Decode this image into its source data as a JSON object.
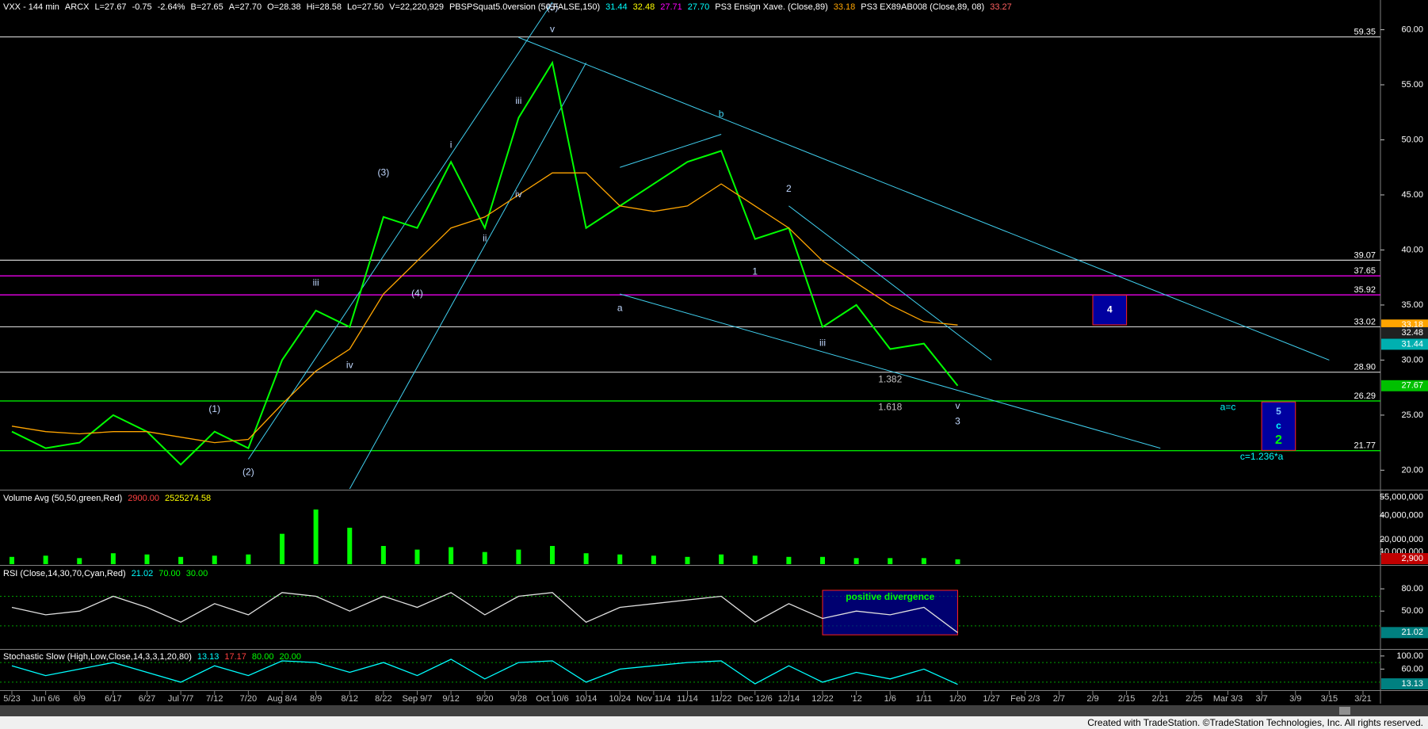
{
  "chart_data": [
    {
      "type": "line",
      "header": [
        {
          "text": "VXX - 144 min",
          "color": "#ffffff"
        },
        {
          "text": "ARCX",
          "color": "#ffffff"
        },
        {
          "text": "L=27.67",
          "color": "#ffffff"
        },
        {
          "text": "-0.75",
          "color": "#ffffff"
        },
        {
          "text": "-2.64%",
          "color": "#ffffff"
        },
        {
          "text": "B=27.65",
          "color": "#ffffff"
        },
        {
          "text": "A=27.70",
          "color": "#ffffff"
        },
        {
          "text": "O=28.38",
          "color": "#ffffff"
        },
        {
          "text": "Hi=28.58",
          "color": "#ffffff"
        },
        {
          "text": "Lo=27.50",
          "color": "#ffffff"
        },
        {
          "text": "V=22,220,929",
          "color": "#ffffff"
        },
        {
          "text": "PBSPSquat5.0version (50,FALSE,150)",
          "color": "#ffffff"
        },
        {
          "text": "31.44",
          "color": "#00ffff"
        },
        {
          "text": "32.48",
          "color": "#ffff00"
        },
        {
          "text": "27.71",
          "color": "#ff00ff"
        },
        {
          "text": "27.70",
          "color": "#00ffff"
        },
        {
          "text": "PS3 Ensign Xave. (Close,89)",
          "color": "#ffffff"
        },
        {
          "text": "33.18",
          "color": "#ffa500"
        },
        {
          "text": "PS3 EX89AB008 (Close,89, 08)",
          "color": "#ffffff"
        },
        {
          "text": "33.27",
          "color": "#ff6060"
        }
      ],
      "categories": [
        "5/23",
        "Jun 6/6",
        "6/9",
        "6/17",
        "6/27",
        "Jul 7/7",
        "7/12",
        "7/20",
        "Aug 8/4",
        "8/9",
        "8/12",
        "8/22",
        "Sep 9/7",
        "9/12",
        "9/20",
        "9/28",
        "Oct 10/6",
        "10/14",
        "10/24",
        "Nov 11/4",
        "11/14",
        "11/22",
        "Dec 12/6",
        "12/14",
        "12/22",
        "'12",
        "1/6",
        "1/11",
        "1/20",
        "1/27",
        "Feb 2/3",
        "2/7",
        "2/9",
        "2/15",
        "2/21",
        "2/25",
        "Mar 3/3",
        "3/7",
        "3/9",
        "3/15",
        "3/21"
      ],
      "ylim": [
        18.3,
        62.7
      ],
      "yticks": [
        {
          "value": 20,
          "label": "20.00"
        },
        {
          "value": 25,
          "label": "25.00"
        },
        {
          "value": 30,
          "label": "30.00"
        },
        {
          "value": 35,
          "label": "35.00"
        },
        {
          "value": 40,
          "label": "40.00"
        },
        {
          "value": 45,
          "label": "45.00"
        },
        {
          "value": 50,
          "label": "50.00"
        },
        {
          "value": 55,
          "label": "55.00"
        },
        {
          "value": 60,
          "label": "60.00"
        }
      ],
      "series": [
        {
          "color": "#00ff00",
          "values": [
            23.5,
            22,
            22.5,
            25,
            23.5,
            20.5,
            23.5,
            22,
            30,
            34.5,
            33,
            43,
            42,
            48,
            42,
            52,
            57,
            42,
            44,
            46,
            48,
            49,
            41,
            42,
            33,
            35,
            31,
            31.5,
            27.67,
            null,
            null,
            null,
            null,
            null,
            null,
            null,
            null,
            null,
            null,
            null,
            null
          ]
        },
        {
          "color": "#ffa500",
          "values": [
            24,
            23.5,
            23.3,
            23.5,
            23.5,
            23,
            22.5,
            22.8,
            26,
            29,
            31,
            36,
            39,
            42,
            43,
            45,
            47,
            47,
            44,
            43.5,
            44,
            46,
            44,
            42,
            39,
            37,
            35,
            33.5,
            33.18,
            null,
            null,
            null,
            null,
            null,
            null,
            null,
            null,
            null,
            null,
            null,
            null
          ]
        }
      ],
      "levels": [
        {
          "value": 59.35,
          "label": "59.35",
          "color": "#d0d0d0"
        },
        {
          "value": 39.07,
          "label": "39.07",
          "color": "#d0d0d0"
        },
        {
          "value": 37.65,
          "label": "37.65",
          "color": "#ff00ff"
        },
        {
          "value": 35.92,
          "label": "35.92",
          "color": "#ff00ff"
        },
        {
          "value": 33.02,
          "label": "33.02",
          "color": "#d0d0d0"
        },
        {
          "value": 28.9,
          "label": "28.90",
          "color": "#d0d0d0"
        },
        {
          "value": 26.29,
          "label": "26.29",
          "color": "#00ff00"
        },
        {
          "value": 21.77,
          "label": "21.77",
          "color": "#00ff00"
        }
      ],
      "last_values": [
        {
          "value": 33.18,
          "label": "33.18",
          "color": "#ffa500"
        },
        {
          "value": 32.48,
          "label": "32.48",
          "color": "#202020"
        },
        {
          "value": 31.44,
          "label": "31.44",
          "color": "#00b0b0"
        },
        {
          "value": 27.67,
          "label": "27.67",
          "color": "#00c000"
        }
      ],
      "trendlines": [
        {
          "x": [
            "7/20",
            "Oct 10/6"
          ],
          "y": [
            21,
            62.5
          ],
          "color": "#40d0f0"
        },
        {
          "x": [
            "8/12",
            "10/14"
          ],
          "y": [
            18.3,
            57
          ],
          "color": "#40d0f0"
        },
        {
          "x": [
            "9/28",
            "3/15"
          ],
          "y": [
            59.3,
            30
          ],
          "color": "#40d0f0"
        },
        {
          "x": [
            "10/24",
            "2/21"
          ],
          "y": [
            36,
            22
          ],
          "color": "#40d0f0"
        },
        {
          "x": [
            "10/24",
            "11/22"
          ],
          "y": [
            47.5,
            50.5
          ],
          "color": "#40d0f0"
        },
        {
          "x": [
            "12/14",
            "1/27"
          ],
          "y": [
            44,
            30
          ],
          "color": "#40d0f0"
        }
      ],
      "annotations": [
        {
          "text": "(1)",
          "x": "7/12",
          "y": 25.5,
          "color": "#c0d8ff"
        },
        {
          "text": "(2)",
          "x": "7/20",
          "y": 19.8,
          "color": "#c0d8ff"
        },
        {
          "text": "(3)",
          "x": "8/22",
          "y": 47,
          "color": "#c0d8ff"
        },
        {
          "text": "(4)",
          "x": "Sep 9/7",
          "y": 36,
          "color": "#c0d8ff"
        },
        {
          "text": "(5)",
          "x": "Oct 10/6",
          "y": 62,
          "color": "#c0d8ff"
        },
        {
          "text": "iii",
          "x": "8/9",
          "y": 37,
          "color": "#c0d8ff"
        },
        {
          "text": "iv",
          "x": "8/12",
          "y": 29.5,
          "color": "#c0d8ff"
        },
        {
          "text": "i",
          "x": "9/12",
          "y": 49.5,
          "color": "#c0d8ff"
        },
        {
          "text": "ii",
          "x": "9/20",
          "y": 41,
          "color": "#c0d8ff"
        },
        {
          "text": "iii",
          "x": "9/28",
          "y": 53.5,
          "color": "#c0d8ff"
        },
        {
          "text": "iv",
          "x": "9/28",
          "y": 45,
          "color": "#c0d8ff"
        },
        {
          "text": "v",
          "x": "Oct 10/6",
          "y": 60,
          "color": "#c0d8ff"
        },
        {
          "text": "a",
          "x": "10/24",
          "y": 34.7,
          "color": "#c0d8ff"
        },
        {
          "text": "b",
          "x": "11/22",
          "y": 52.3,
          "color": "#40d0f0"
        },
        {
          "text": "1",
          "x": "Dec 12/6",
          "y": 38,
          "color": "#c0d8ff"
        },
        {
          "text": "2",
          "x": "12/14",
          "y": 45.5,
          "color": "#c0d8ff"
        },
        {
          "text": "iii",
          "x": "12/22",
          "y": 31.5,
          "color": "#c0d8ff"
        },
        {
          "text": "1.382",
          "x": "1/6",
          "y": 28.2,
          "color": "#c0c0c0"
        },
        {
          "text": "1.618",
          "x": "1/6",
          "y": 25.7,
          "color": "#c0c0c0"
        },
        {
          "text": "v",
          "x": "1/20",
          "y": 25.8,
          "color": "#c0d8ff"
        },
        {
          "text": "3",
          "x": "1/20",
          "y": 24.4,
          "color": "#c0d8ff"
        },
        {
          "text": "a=c",
          "x": "Mar 3/3",
          "y": 25.7,
          "color": "#00ffff"
        },
        {
          "text": "c=1.236*a",
          "x": "3/7",
          "y": 21.2,
          "color": "#00ffff"
        }
      ],
      "boxes": [
        {
          "x": [
            "2/9",
            "2/15"
          ],
          "y": [
            33.2,
            35.9
          ],
          "labels": [
            {
              "text": "4",
              "color": "#ffffff"
            }
          ]
        },
        {
          "x": [
            "3/7",
            "3/9"
          ],
          "y": [
            21.8,
            26.2
          ],
          "labels": [
            {
              "text": "5",
              "color": "#80c0ff"
            },
            {
              "text": "c",
              "color": "#00ffff"
            },
            {
              "text": "2",
              "color": "#00ff00"
            }
          ]
        }
      ]
    },
    {
      "type": "bar",
      "header": [
        {
          "text": "Volume Avg (50,50,green,Red)",
          "color": "#ffffff"
        },
        {
          "text": "2900.00",
          "color": "#ff4040"
        },
        {
          "text": "2525274.58",
          "color": "#ffff00"
        }
      ],
      "ylim": [
        0,
        60000000
      ],
      "yticks": [
        {
          "value": 10000000,
          "label": "10,000,000"
        },
        {
          "value": 20000000,
          "label": "20,000,000"
        },
        {
          "value": 40000000,
          "label": "40,000,000"
        },
        {
          "value": 55000000,
          "label": "55,000,000"
        }
      ],
      "color": "#00ff00",
      "values": [
        6000000,
        7000000,
        5000000,
        9000000,
        8000000,
        6000000,
        7000000,
        8000000,
        25000000,
        45000000,
        30000000,
        15000000,
        12000000,
        14000000,
        10000000,
        12000000,
        15000000,
        9000000,
        8000000,
        7000000,
        6000000,
        8000000,
        7000000,
        6000000,
        6000000,
        5000000,
        5000000,
        5000000,
        4000000,
        null,
        null,
        null,
        null,
        null,
        null,
        null,
        null,
        null,
        null,
        null,
        null
      ],
      "last_values": [
        {
          "value": 2900,
          "label": "2,900",
          "color": "#c00000"
        }
      ]
    },
    {
      "type": "line",
      "header": [
        {
          "text": "RSI (Close,14,30,70,Cyan,Red)",
          "color": "#ffffff"
        },
        {
          "text": "21.02",
          "color": "#00ffff"
        },
        {
          "text": "70.00",
          "color": "#00ff00"
        },
        {
          "text": "30.00",
          "color": "#00ff00"
        }
      ],
      "ylim": [
        0,
        110
      ],
      "yticks": [
        {
          "value": 80,
          "label": "80.00"
        },
        {
          "value": 50,
          "label": "50.00"
        }
      ],
      "guides": [
        70,
        30
      ],
      "series": [
        {
          "color": "#e0e0e0",
          "values": [
            55,
            45,
            50,
            70,
            55,
            35,
            60,
            45,
            75,
            70,
            50,
            70,
            55,
            75,
            45,
            70,
            75,
            35,
            55,
            60,
            65,
            70,
            35,
            60,
            40,
            50,
            45,
            55,
            21.02,
            null,
            null,
            null,
            null,
            null,
            null,
            null,
            null,
            null,
            null,
            null,
            null
          ]
        }
      ],
      "last_values": [
        {
          "value": 21.02,
          "label": "21.02",
          "color": "#008080"
        }
      ],
      "boxes": [
        {
          "x": [
            "12/22",
            "1/20"
          ],
          "y": [
            18,
            78
          ],
          "labels": [
            {
              "text": "positive divergence",
              "color": "#00ff00"
            }
          ]
        }
      ]
    },
    {
      "type": "line",
      "header": [
        {
          "text": "Stochastic Slow (High,Low,Close,14,3,3,1,20,80)",
          "color": "#ffffff"
        },
        {
          "text": "13.13",
          "color": "#00ffff"
        },
        {
          "text": "17.17",
          "color": "#ff4040"
        },
        {
          "text": "80.00",
          "color": "#00ff00"
        },
        {
          "text": "20.00",
          "color": "#00ff00"
        }
      ],
      "ylim": [
        -2,
        119
      ],
      "yticks": [
        {
          "value": 100,
          "label": "100.00"
        },
        {
          "value": 60,
          "label": "60.00"
        }
      ],
      "guides": [
        80,
        20
      ],
      "series": [
        {
          "color": "#00ffff",
          "values": [
            70,
            40,
            60,
            80,
            50,
            20,
            70,
            40,
            85,
            80,
            50,
            80,
            40,
            90,
            30,
            80,
            85,
            20,
            60,
            70,
            80,
            85,
            15,
            70,
            20,
            50,
            30,
            60,
            13.13,
            null,
            null,
            null,
            null,
            null,
            null,
            null,
            null,
            null,
            null,
            null,
            null
          ]
        }
      ],
      "last_values": [
        {
          "value": 13.13,
          "label": "13.13",
          "color": "#008080"
        }
      ]
    }
  ],
  "footer": "Created with TradeStation. ©TradeStation Technologies, Inc. All rights reserved."
}
